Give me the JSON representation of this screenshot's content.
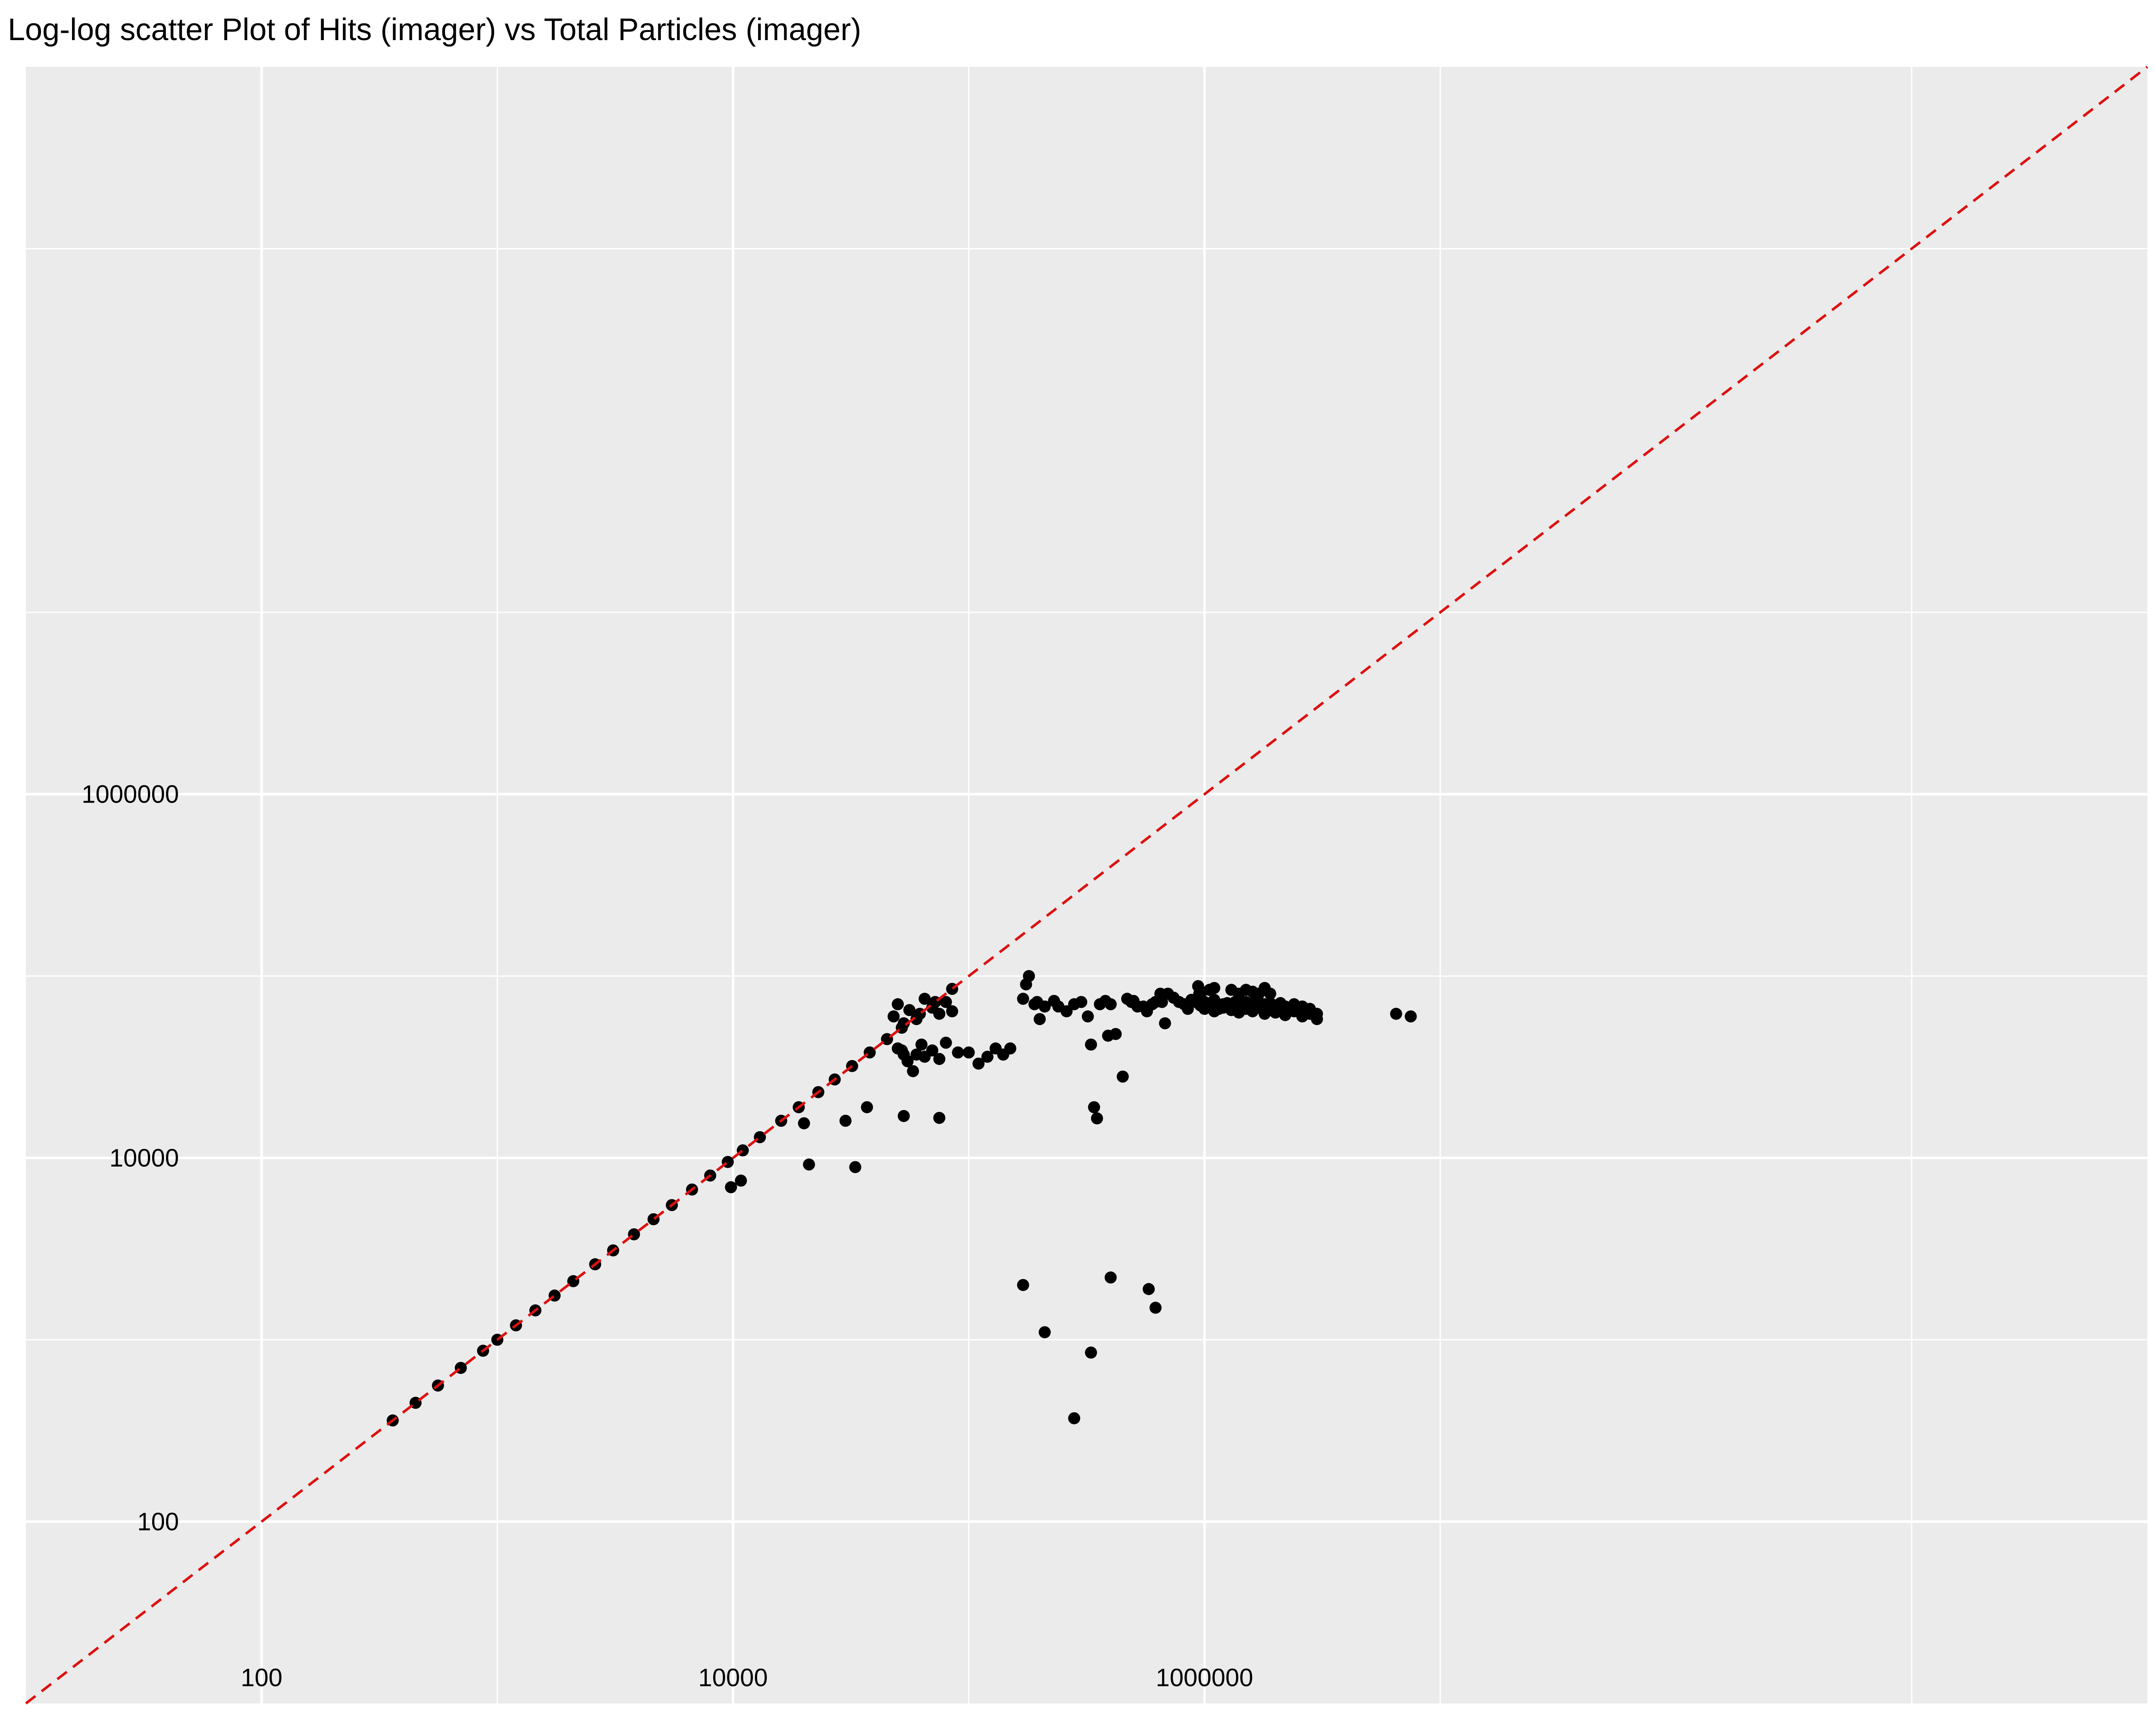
{
  "chart_data": {
    "type": "scatter",
    "title": "Log-log scatter Plot of Hits (imager) vs Total Particles (imager)",
    "xlabel": "",
    "ylabel": "",
    "x_scale": "log10",
    "y_scale": "log10",
    "xlim": [
      10,
      10000000000
    ],
    "ylim": [
      10,
      10000000000
    ],
    "x_ticks": [
      {
        "value": 100,
        "label": "100"
      },
      {
        "value": 10000,
        "label": "10000"
      },
      {
        "value": 1000000,
        "label": "1000000"
      }
    ],
    "y_ticks": [
      {
        "value": 100,
        "label": "100"
      },
      {
        "value": 10000,
        "label": "10000"
      },
      {
        "value": 1000000,
        "label": "1000000"
      }
    ],
    "grid": true,
    "background_color": "#EBEBEB",
    "gridline_color": "#FFFFFF",
    "point_color": "#000000",
    "reference_line": {
      "type": "identity",
      "equation": "y = x",
      "color": "#DD1111",
      "style": "dashed"
    },
    "series": [
      {
        "points": [
          [
            360,
            360
          ],
          [
            450,
            450
          ],
          [
            560,
            560
          ],
          [
            700,
            700
          ],
          [
            870,
            870
          ],
          [
            1000,
            1000
          ],
          [
            1200,
            1200
          ],
          [
            1450,
            1450
          ],
          [
            1750,
            1750
          ],
          [
            2100,
            2100
          ],
          [
            2600,
            2600
          ],
          [
            3100,
            3100
          ],
          [
            3800,
            3800
          ],
          [
            4600,
            4600
          ],
          [
            5500,
            5500
          ],
          [
            6700,
            6700
          ],
          [
            8000,
            8000
          ],
          [
            9500,
            9500
          ],
          [
            11000,
            11000
          ],
          [
            13000,
            13000
          ],
          [
            16000,
            16000
          ],
          [
            19000,
            19000
          ],
          [
            23000,
            23000
          ],
          [
            27000,
            27000
          ],
          [
            32000,
            32000
          ],
          [
            38000,
            38000
          ],
          [
            20000,
            15500
          ],
          [
            45000,
            45000
          ],
          [
            52000,
            52000
          ],
          [
            62000,
            62000
          ],
          [
            72000,
            72000
          ],
          [
            85000,
            85000
          ],
          [
            9800,
            6900
          ],
          [
            10800,
            7500
          ],
          [
            21000,
            9200
          ],
          [
            33000,
            8900
          ],
          [
            48000,
            60000
          ],
          [
            50000,
            70000
          ],
          [
            53000,
            55000
          ],
          [
            56000,
            65000
          ],
          [
            60000,
            58000
          ],
          [
            65000,
            75000
          ],
          [
            70000,
            67000
          ],
          [
            75000,
            62000
          ],
          [
            80000,
            72000
          ],
          [
            85000,
            64000
          ],
          [
            50000,
            40000
          ],
          [
            52000,
            39000
          ],
          [
            53000,
            37000
          ],
          [
            55000,
            34000
          ],
          [
            58000,
            30000
          ],
          [
            60000,
            37000
          ],
          [
            63000,
            42000
          ],
          [
            65000,
            36000
          ],
          [
            70000,
            39000
          ],
          [
            75000,
            35000
          ],
          [
            80000,
            43000
          ],
          [
            90000,
            38000
          ],
          [
            100000,
            38000
          ],
          [
            110000,
            33000
          ],
          [
            120000,
            36000
          ],
          [
            130000,
            40000
          ],
          [
            140000,
            37000
          ],
          [
            150000,
            40000
          ],
          [
            30000,
            16000
          ],
          [
            37000,
            19000
          ],
          [
            53000,
            17000
          ],
          [
            75000,
            16600
          ],
          [
            170000,
            75000
          ],
          [
            175000,
            90000
          ],
          [
            180000,
            100000
          ],
          [
            190000,
            70000
          ],
          [
            195000,
            72000
          ],
          [
            200000,
            58000
          ],
          [
            210000,
            68000
          ],
          [
            230000,
            73000
          ],
          [
            240000,
            68000
          ],
          [
            260000,
            64000
          ],
          [
            280000,
            70000
          ],
          [
            300000,
            72000
          ],
          [
            320000,
            60000
          ],
          [
            330000,
            42000
          ],
          [
            340000,
            19000
          ],
          [
            350000,
            16500
          ],
          [
            360000,
            70000
          ],
          [
            380000,
            73000
          ],
          [
            390000,
            47000
          ],
          [
            400000,
            70000
          ],
          [
            420000,
            48000
          ],
          [
            450000,
            28000
          ],
          [
            470000,
            75000
          ],
          [
            490000,
            72000
          ],
          [
            500000,
            73000
          ],
          [
            520000,
            68000
          ],
          [
            550000,
            68000
          ],
          [
            570000,
            64000
          ],
          [
            600000,
            70000
          ],
          [
            620000,
            72000
          ],
          [
            650000,
            80000
          ],
          [
            660000,
            72000
          ],
          [
            680000,
            55000
          ],
          [
            700000,
            80000
          ],
          [
            740000,
            76000
          ],
          [
            780000,
            72000
          ],
          [
            820000,
            70000
          ],
          [
            850000,
            66000
          ],
          [
            880000,
            74000
          ],
          [
            920000,
            72000
          ],
          [
            960000,
            69000
          ],
          [
            1000000,
            72000
          ],
          [
            1050000,
            70000
          ],
          [
            1100000,
            74000
          ],
          [
            1150000,
            66000
          ],
          [
            1200000,
            70000
          ],
          [
            1250000,
            71000
          ],
          [
            1300000,
            68000
          ],
          [
            1350000,
            72000
          ],
          [
            1400000,
            70000
          ],
          [
            1450000,
            68000
          ],
          [
            1500000,
            72000
          ],
          [
            1550000,
            70000
          ],
          [
            1600000,
            71000
          ],
          [
            1650000,
            69000
          ],
          [
            1700000,
            72000
          ],
          [
            1800000,
            70000
          ],
          [
            1900000,
            71000
          ],
          [
            2000000,
            69000
          ],
          [
            2100000,
            71000
          ],
          [
            2200000,
            68000
          ],
          [
            2300000,
            66000
          ],
          [
            2400000,
            70000
          ],
          [
            2500000,
            67000
          ],
          [
            2600000,
            68000
          ],
          [
            2700000,
            63000
          ],
          [
            2800000,
            66000
          ],
          [
            3000000,
            62000
          ],
          [
            940000,
            88000
          ],
          [
            950000,
            80000
          ],
          [
            960000,
            78000
          ],
          [
            1050000,
            84000
          ],
          [
            1100000,
            86000
          ],
          [
            1300000,
            84000
          ],
          [
            1400000,
            80000
          ],
          [
            1500000,
            84000
          ],
          [
            1600000,
            82000
          ],
          [
            1700000,
            80000
          ],
          [
            1800000,
            86000
          ],
          [
            1900000,
            80000
          ],
          [
            1000000,
            66000
          ],
          [
            1100000,
            64000
          ],
          [
            1200000,
            67000
          ],
          [
            1300000,
            65000
          ],
          [
            1400000,
            63000
          ],
          [
            1500000,
            66000
          ],
          [
            1600000,
            64000
          ],
          [
            1700000,
            67000
          ],
          [
            1800000,
            62000
          ],
          [
            1900000,
            65000
          ],
          [
            2000000,
            63000
          ],
          [
            2200000,
            61000
          ],
          [
            2400000,
            64000
          ],
          [
            2600000,
            60000
          ],
          [
            2800000,
            62000
          ],
          [
            3000000,
            58000
          ],
          [
            6500000,
            62000
          ],
          [
            7500000,
            60000
          ],
          [
            580000,
            1900
          ],
          [
            620000,
            1500
          ],
          [
            210000,
            1100
          ],
          [
            170000,
            2000
          ],
          [
            280000,
            370
          ],
          [
            330000,
            850
          ],
          [
            400000,
            2200
          ]
        ]
      }
    ]
  }
}
